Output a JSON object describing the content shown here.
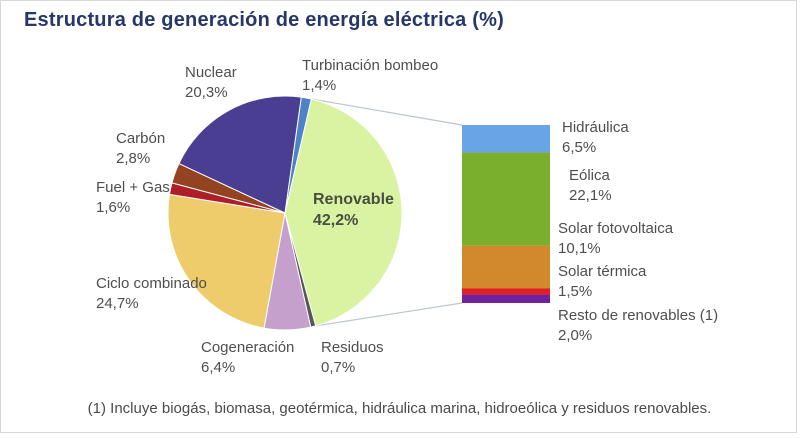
{
  "title": "Estructura de generación de energía eléctrica (%)",
  "footnote": "(1) Incluye biogás, biomasa, geotérmica, hidráulica marina, hidroeólica y residuos renovables.",
  "colors": {
    "title": "#263768",
    "label": "#4e4e4e",
    "emphasis_label": "#474f41",
    "leader_line": "#bcc5cd",
    "card_border": "#d8d8d8",
    "slice_stroke": "#ffffff"
  },
  "chart_data": {
    "type": "pie",
    "title": "Estructura de generación de energía eléctrica (%)",
    "unit": "%",
    "pie": {
      "start_angle_deg": 8,
      "slices": [
        {
          "name": "Turbinación bombeo",
          "value": 1.4,
          "value_label": "1,4%",
          "color": "#4e82c8"
        },
        {
          "name": "Renovable",
          "value": 42.2,
          "value_label": "42,2%",
          "color": "#d9f3a2",
          "emphasis": true
        },
        {
          "name": "Residuos",
          "value": 0.7,
          "value_label": "0,7%",
          "color": "#59565b"
        },
        {
          "name": "Cogeneración",
          "value": 6.4,
          "value_label": "6,4%",
          "color": "#c6a0cd"
        },
        {
          "name": "Ciclo combinado",
          "value": 24.7,
          "value_label": "24,7%",
          "color": "#eecc6c"
        },
        {
          "name": "Fuel + Gas",
          "value": 1.6,
          "value_label": "1,6%",
          "color": "#ae1e29"
        },
        {
          "name": "Carbón",
          "value": 2.8,
          "value_label": "2,8%",
          "color": "#93431f"
        },
        {
          "name": "Nuclear",
          "value": 20.3,
          "value_label": "20,3%",
          "color": "#4a3e93"
        }
      ]
    },
    "renewable_breakdown": {
      "type": "stacked-bar",
      "parent": "Renovable",
      "segments": [
        {
          "name": "Hidráulica",
          "value": 6.5,
          "value_label": "6,5%",
          "color": "#68a4e6"
        },
        {
          "name": "Eólica",
          "value": 22.1,
          "value_label": "22,1%",
          "color": "#7aae2d"
        },
        {
          "name": "Solar fotovoltaica",
          "value": 10.1,
          "value_label": "10,1%",
          "color": "#d2892c"
        },
        {
          "name": "Solar térmica",
          "value": 1.5,
          "value_label": "1,5%",
          "color": "#de231f"
        },
        {
          "name": "Resto de renovables (1)",
          "value": 2.0,
          "value_label": "2,0%",
          "color": "#6f219e"
        }
      ]
    }
  }
}
